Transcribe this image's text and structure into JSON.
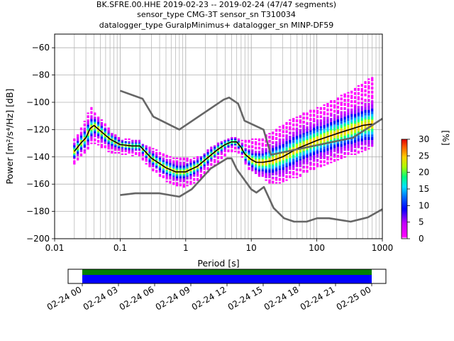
{
  "title": {
    "line1": "BK.SFRE.00.HHE   2019-02-23 -- 2019-02-24  (47/47 segments)",
    "line2": "sensor_type CMG-3T sensor_sn T310034",
    "line3": "datalogger_type GuralpMinimus+ datalogger_sn MINP-DF59"
  },
  "chart_data": [
    {
      "type": "heatmap",
      "title": "BK.SFRE.00.HHE   2019-02-23 -- 2019-02-24  (47/47 segments)",
      "xlabel": "Period [s]",
      "ylabel": "Power [m²/s⁴/Hz] [dB]",
      "xscale": "log",
      "xlim": [
        0.01,
        1000
      ],
      "ylim": [
        -200,
        -50
      ],
      "x_ticks": [
        "0.01",
        "0.1",
        "1",
        "10",
        "100",
        "1000"
      ],
      "y_ticks": [
        "−60",
        "−80",
        "−100",
        "−120",
        "−140",
        "−160",
        "−180",
        "−200"
      ],
      "grid": true,
      "series": [
        {
          "name": "mode",
          "color": "#000000",
          "period": [
            0.02,
            0.025,
            0.03,
            0.035,
            0.04,
            0.05,
            0.07,
            0.1,
            0.15,
            0.2,
            0.3,
            0.5,
            0.7,
            1,
            1.5,
            2,
            3,
            4,
            5,
            6,
            7,
            8,
            10,
            12,
            15,
            20,
            30,
            50,
            100,
            200,
            500,
            700
          ],
          "power": [
            -136,
            -130,
            -126,
            -119,
            -117,
            -121,
            -127,
            -131,
            -132,
            -132,
            -141,
            -148,
            -151,
            -151,
            -147,
            -142,
            -135,
            -131,
            -129,
            -129,
            -133,
            -138,
            -142,
            -144,
            -144,
            -143,
            -140,
            -134,
            -128,
            -123,
            -117,
            -116
          ]
        },
        {
          "name": "NHNM",
          "color": "#666666",
          "period": [
            0.1,
            0.22,
            0.32,
            0.8,
            3.8,
            4.6,
            6.3,
            7.9,
            15.4,
            20,
            354.8,
            1000
          ],
          "power": [
            -91.5,
            -97.4,
            -110.5,
            -120,
            -98,
            -96.5,
            -101,
            -113.5,
            -120,
            -138.5,
            -126,
            -112
          ]
        },
        {
          "name": "NLNM",
          "color": "#666666",
          "period": [
            0.1,
            0.17,
            0.4,
            0.8,
            1.24,
            2.4,
            4.3,
            5,
            6,
            10,
            12,
            15.6,
            21.9,
            31.6,
            45,
            70,
            101,
            154,
            328,
            600,
            1000
          ],
          "power": [
            -168,
            -166.7,
            -166.7,
            -169.2,
            -163.7,
            -148.6,
            -141.1,
            -141.1,
            -149,
            -163.8,
            -166.2,
            -162.1,
            -177.5,
            -185,
            -187.5,
            -187.5,
            -185,
            -185,
            -187.5,
            -184.4,
            -178.4
          ]
        }
      ],
      "density_band": {
        "period": [
          0.02,
          0.025,
          0.03,
          0.035,
          0.04,
          0.05,
          0.07,
          0.1,
          0.15,
          0.2,
          0.3,
          0.5,
          0.7,
          1,
          1.5,
          2,
          3,
          4,
          5,
          6,
          7,
          8,
          10,
          15,
          20,
          30,
          50,
          100,
          200,
          500,
          700
        ],
        "upper": [
          -126,
          -119,
          -112,
          -103,
          -106,
          -111,
          -120,
          -126,
          -127,
          -128,
          -133,
          -138,
          -141,
          -141,
          -140,
          -136,
          -130,
          -127,
          -126,
          -126,
          -127,
          -128,
          -127,
          -125,
          -122,
          -116,
          -110,
          -104,
          -97,
          -86,
          -81
        ],
        "lower": [
          -146,
          -141,
          -137,
          -131,
          -130,
          -133,
          -137,
          -138,
          -139,
          -140,
          -150,
          -158,
          -162,
          -162,
          -159,
          -153,
          -145,
          -139,
          -136,
          -136,
          -139,
          -146,
          -151,
          -156,
          -160,
          -159,
          -155,
          -149,
          -143,
          -136,
          -133
        ]
      }
    },
    {
      "type": "colorbar",
      "label": "[%]",
      "range": [
        0,
        30
      ],
      "ticks": [
        "0",
        "5",
        "10",
        "15",
        "20",
        "25",
        "30"
      ]
    },
    {
      "type": "timeline",
      "x_ticks": [
        "02-24 00",
        "02-24 03",
        "02-24 06",
        "02-24 09",
        "02-24 12",
        "02-24 15",
        "02-24 18",
        "02-24 21",
        "02-25 00"
      ],
      "coverage_start": "02-24 00",
      "coverage_end": "02-25 00",
      "colors": {
        "top": "#008000",
        "bottom": "#0000ff"
      }
    }
  ]
}
